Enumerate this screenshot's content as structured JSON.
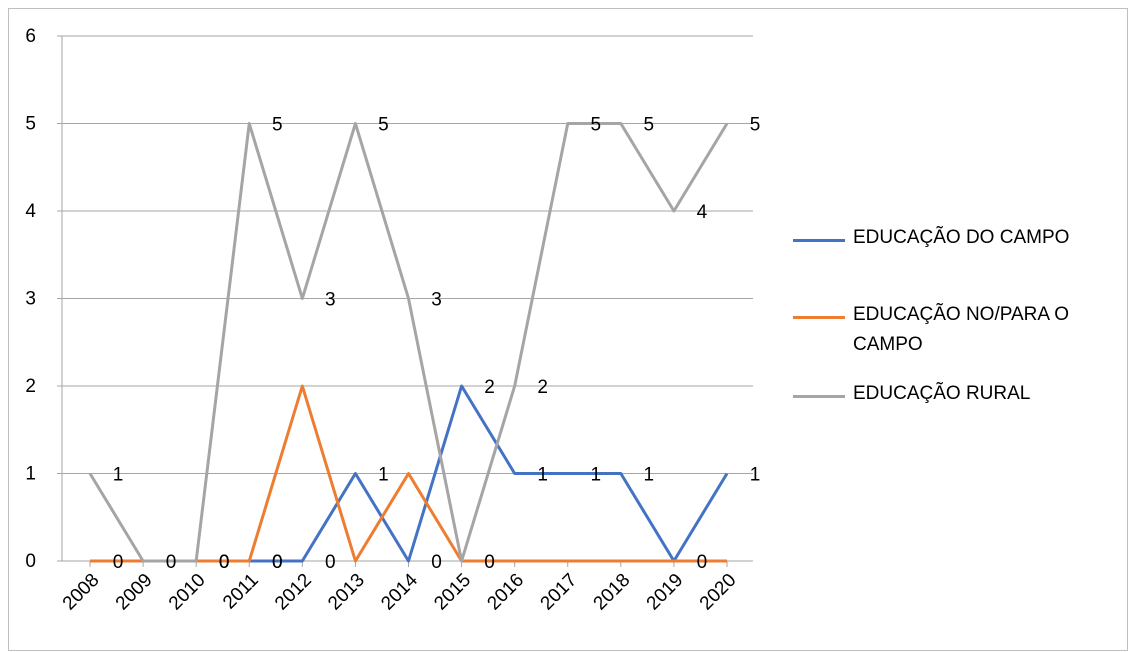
{
  "chart_data": {
    "type": "line",
    "categories": [
      "2008",
      "2009",
      "2010",
      "2011",
      "2012",
      "2013",
      "2014",
      "2015",
      "2016",
      "2017",
      "2018",
      "2019",
      "2020"
    ],
    "ylim": [
      0,
      6
    ],
    "yticks": [
      "0",
      "1",
      "2",
      "3",
      "4",
      "5",
      "6"
    ],
    "grid": true,
    "legend_position": "right",
    "series": [
      {
        "name": "EDUCAÇÃO DO CAMPO",
        "color": "#4472c4",
        "values": [
          0,
          0,
          0,
          0,
          0,
          1,
          0,
          2,
          1,
          1,
          1,
          0,
          1
        ],
        "labels": [
          "",
          "",
          "",
          "0",
          "0",
          "1",
          "0",
          "2",
          "1",
          "1",
          "1",
          "",
          "1"
        ]
      },
      {
        "name": "EDUCAÇÃO NO/PARA O CAMPO",
        "color": "#ed7d31",
        "values": [
          0,
          0,
          0,
          0,
          2,
          0,
          1,
          0,
          0,
          0,
          0,
          0,
          0
        ],
        "labels": [
          "0",
          "0",
          "0",
          "0",
          "",
          "",
          "",
          "0",
          "",
          "",
          "",
          "0",
          ""
        ]
      },
      {
        "name": "EDUCAÇÃO RURAL",
        "color": "#a5a5a5",
        "values": [
          1,
          0,
          0,
          5,
          3,
          5,
          3,
          0,
          2,
          5,
          5,
          4,
          5
        ],
        "labels": [
          "1",
          "",
          "0",
          "5",
          "3",
          "5",
          "3",
          "",
          "2",
          "5",
          "5",
          "4",
          "5"
        ]
      }
    ]
  }
}
